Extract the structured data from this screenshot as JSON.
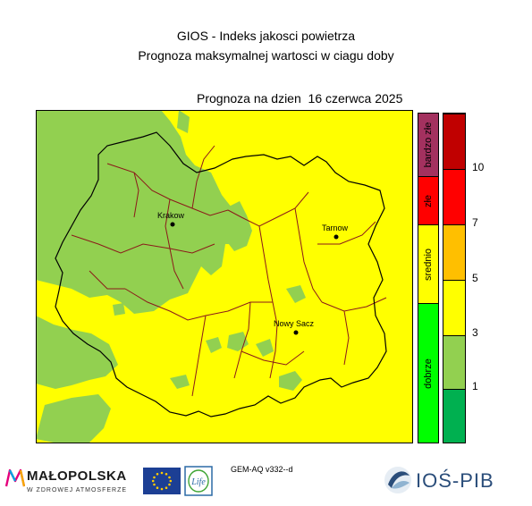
{
  "header": {
    "title": "GIOS - Indeks jakosci powietrza",
    "subtitle": "Prognoza maksymalnej wartosci w ciagu doby",
    "date_line": "Prognoza na dzien  16 czerwca 2025"
  },
  "map": {
    "places": [
      {
        "name": "Krakow"
      },
      {
        "name": "Tarnow"
      },
      {
        "name": "Nowy Sacz"
      }
    ],
    "colors": {
      "good_area": "#92d050",
      "moderate_area": "#ffff00",
      "voivodeship_border": "#000000",
      "county_border": "#8b1a1a"
    }
  },
  "legend": {
    "categories": [
      {
        "label": "bardzo złe",
        "color": "#a3315f"
      },
      {
        "label": "złe",
        "color": "#ff0000"
      },
      {
        "label": "srednio",
        "color": "#ffff00"
      },
      {
        "label": "dobrze",
        "color": "#00ff00"
      }
    ],
    "levels": [
      {
        "color": "#c00000"
      },
      {
        "color": "#ff0000"
      },
      {
        "color": "#ffbf00"
      },
      {
        "color": "#ffff00"
      },
      {
        "color": "#92d050"
      },
      {
        "color": "#00b050"
      }
    ],
    "ticks": [
      "10",
      "7",
      "5",
      "3",
      "1"
    ]
  },
  "footer": {
    "model": "GEM-AQ v332--d",
    "malopolska_name": "MAŁOPOLSKA",
    "malopolska_tagline": "W ZDROWEJ ATMOSFERZE",
    "life_text": "Life",
    "ios_name": "IOŚ-PIB"
  }
}
